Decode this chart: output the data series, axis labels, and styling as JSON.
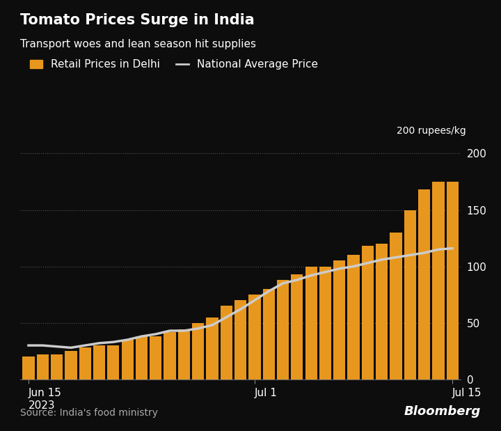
{
  "title": "Tomato Prices Surge in India",
  "subtitle": "Transport woes and lean season hit supplies",
  "legend_bar": "Retail Prices in Delhi",
  "legend_line": "National Average Price",
  "y_label_top": "200 rupees/kg",
  "source": "Source: India's food ministry",
  "background_color": "#0d0d0d",
  "bar_color": "#e8971e",
  "line_color": "#cccccc",
  "text_color": "#ffffff",
  "ylim": [
    0,
    210
  ],
  "yticks": [
    0,
    50,
    100,
    150,
    200
  ],
  "xtick_labels": [
    "Jun 15\n2023",
    "Jul 1",
    "Jul 15"
  ],
  "xtick_positions": [
    0,
    16,
    30
  ],
  "bar_values": [
    20,
    22,
    22,
    25,
    28,
    30,
    30,
    35,
    38,
    38,
    42,
    44,
    50,
    55,
    65,
    70,
    75,
    80,
    88,
    93,
    100,
    100,
    105,
    110,
    118,
    120,
    130,
    150,
    168,
    175,
    175
  ],
  "line_values": [
    30,
    30,
    29,
    28,
    30,
    32,
    33,
    35,
    38,
    40,
    43,
    43,
    45,
    48,
    55,
    62,
    70,
    78,
    85,
    88,
    92,
    95,
    98,
    100,
    103,
    106,
    108,
    110,
    112,
    115,
    116
  ]
}
